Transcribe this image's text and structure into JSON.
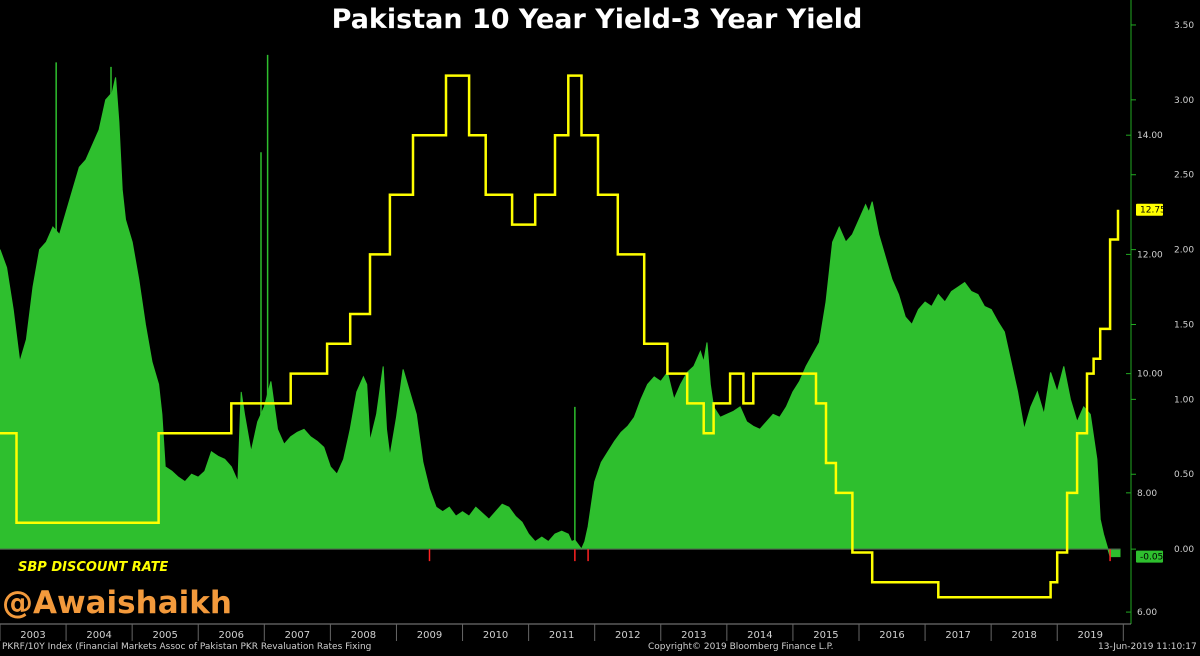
{
  "colors": {
    "background": "#000000",
    "spread_fill": "#2ebf2e",
    "discount_line": "#ffff00",
    "axis_right": "#22aa22",
    "tick_text": "#d0d0d0",
    "footer_text": "#cfcfcf",
    "watermark": "#f39a3c",
    "negative_marks": "#ff2222"
  },
  "footer": {
    "left": "PKRF/10Y Index (Financial Markets Assoc of Pakistan PKR Revaluation Rates Fixing",
    "center": "Copyright© 2019 Bloomberg Finance L.P.",
    "right": "13-Jun-2019 11:10:17"
  },
  "watermark": "@Awaishaikh",
  "chart_data": {
    "type": "area",
    "title": "Pakistan 10 Year Yield-3 Year Yield",
    "x_range": [
      2002.5,
      2019.45
    ],
    "x_ticks": [
      {
        "label": "2003",
        "x": 2003.0
      },
      {
        "label": "2004",
        "x": 2004.0
      },
      {
        "label": "2005",
        "x": 2005.0
      },
      {
        "label": "2006",
        "x": 2006.0
      },
      {
        "label": "2007",
        "x": 2007.0
      },
      {
        "label": "2008",
        "x": 2008.0
      },
      {
        "label": "2009",
        "x": 2009.0
      },
      {
        "label": "2010",
        "x": 2010.0
      },
      {
        "label": "2011",
        "x": 2011.0
      },
      {
        "label": "2012",
        "x": 2012.0
      },
      {
        "label": "2013",
        "x": 2013.0
      },
      {
        "label": "2014",
        "x": 2014.0
      },
      {
        "label": "2015",
        "x": 2015.0
      },
      {
        "label": "2016",
        "x": 2016.0
      },
      {
        "label": "2017",
        "x": 2017.0
      },
      {
        "label": "2018",
        "x": 2018.0
      },
      {
        "label": "2019",
        "x": 2019.0
      }
    ],
    "right_axis_spread": {
      "range": [
        -0.5,
        3.6
      ],
      "ticks": [
        {
          "label": "0.00",
          "value": 0.0
        },
        {
          "label": "0.50",
          "value": 0.5
        },
        {
          "label": "1.00",
          "value": 1.0
        },
        {
          "label": "1.50",
          "value": 1.5
        },
        {
          "label": "2.00",
          "value": 2.0
        },
        {
          "label": "2.50",
          "value": 2.5
        },
        {
          "label": "3.00",
          "value": 3.0
        },
        {
          "label": "3.50",
          "value": 3.5
        }
      ]
    },
    "right_axis_rate": {
      "range": [
        5.8,
        16.1
      ],
      "ticks": [
        {
          "label": "6.00",
          "value": 6.0
        },
        {
          "label": "8.00",
          "value": 8.0
        },
        {
          "label": "10.00",
          "value": 10.0
        },
        {
          "label": "12.00",
          "value": 12.0
        },
        {
          "label": "14.00",
          "value": 14.0
        }
      ]
    },
    "series": [
      {
        "name": "",
        "kind": "area",
        "axis": "spread",
        "points": [
          [
            2002.5,
            2.0
          ],
          [
            2002.6,
            1.88
          ],
          [
            2002.7,
            1.6
          ],
          [
            2002.8,
            1.25
          ],
          [
            2002.9,
            1.4
          ],
          [
            2003.0,
            1.75
          ],
          [
            2003.1,
            2.0
          ],
          [
            2003.2,
            2.05
          ],
          [
            2003.3,
            2.15
          ],
          [
            2003.4,
            2.1
          ],
          [
            2003.5,
            2.25
          ],
          [
            2003.6,
            2.4
          ],
          [
            2003.7,
            2.55
          ],
          [
            2003.8,
            2.6
          ],
          [
            2003.9,
            2.7
          ],
          [
            2004.0,
            2.8
          ],
          [
            2004.1,
            3.0
          ],
          [
            2004.2,
            3.05
          ],
          [
            2004.25,
            3.15
          ],
          [
            2004.3,
            2.85
          ],
          [
            2004.35,
            2.4
          ],
          [
            2004.4,
            2.2
          ],
          [
            2004.5,
            2.05
          ],
          [
            2004.6,
            1.8
          ],
          [
            2004.7,
            1.5
          ],
          [
            2004.8,
            1.25
          ],
          [
            2004.9,
            1.1
          ],
          [
            2004.95,
            0.9
          ],
          [
            2005.0,
            0.55
          ],
          [
            2005.1,
            0.52
          ],
          [
            2005.2,
            0.48
          ],
          [
            2005.3,
            0.45
          ],
          [
            2005.4,
            0.5
          ],
          [
            2005.5,
            0.48
          ],
          [
            2005.6,
            0.52
          ],
          [
            2005.7,
            0.65
          ],
          [
            2005.8,
            0.62
          ],
          [
            2005.9,
            0.6
          ],
          [
            2006.0,
            0.55
          ],
          [
            2006.1,
            0.45
          ],
          [
            2006.15,
            1.05
          ],
          [
            2006.2,
            0.9
          ],
          [
            2006.3,
            0.65
          ],
          [
            2006.4,
            0.85
          ],
          [
            2006.5,
            0.95
          ],
          [
            2006.6,
            1.12
          ],
          [
            2006.7,
            0.8
          ],
          [
            2006.8,
            0.7
          ],
          [
            2006.9,
            0.75
          ],
          [
            2007.0,
            0.78
          ],
          [
            2007.1,
            0.8
          ],
          [
            2007.2,
            0.75
          ],
          [
            2007.3,
            0.72
          ],
          [
            2007.4,
            0.68
          ],
          [
            2007.5,
            0.55
          ],
          [
            2007.6,
            0.5
          ],
          [
            2007.7,
            0.6
          ],
          [
            2007.8,
            0.8
          ],
          [
            2007.9,
            1.05
          ],
          [
            2008.0,
            1.15
          ],
          [
            2008.05,
            1.1
          ],
          [
            2008.1,
            0.72
          ],
          [
            2008.2,
            0.9
          ],
          [
            2008.3,
            1.22
          ],
          [
            2008.35,
            0.8
          ],
          [
            2008.4,
            0.62
          ],
          [
            2008.5,
            0.88
          ],
          [
            2008.6,
            1.2
          ],
          [
            2008.7,
            1.05
          ],
          [
            2008.8,
            0.9
          ],
          [
            2008.9,
            0.58
          ],
          [
            2009.0,
            0.4
          ],
          [
            2009.1,
            0.28
          ],
          [
            2009.2,
            0.25
          ],
          [
            2009.3,
            0.28
          ],
          [
            2009.4,
            0.22
          ],
          [
            2009.5,
            0.25
          ],
          [
            2009.6,
            0.22
          ],
          [
            2009.7,
            0.28
          ],
          [
            2009.8,
            0.24
          ],
          [
            2009.9,
            0.2
          ],
          [
            2010.0,
            0.25
          ],
          [
            2010.1,
            0.3
          ],
          [
            2010.2,
            0.28
          ],
          [
            2010.3,
            0.22
          ],
          [
            2010.4,
            0.18
          ],
          [
            2010.5,
            0.1
          ],
          [
            2010.6,
            0.05
          ],
          [
            2010.7,
            0.08
          ],
          [
            2010.8,
            0.05
          ],
          [
            2010.9,
            0.1
          ],
          [
            2011.0,
            0.12
          ],
          [
            2011.1,
            0.1
          ],
          [
            2011.15,
            0.05
          ],
          [
            2011.2,
            0.06
          ],
          [
            2011.3,
            0.0
          ],
          [
            2011.35,
            0.05
          ],
          [
            2011.4,
            0.15
          ],
          [
            2011.5,
            0.45
          ],
          [
            2011.6,
            0.58
          ],
          [
            2011.7,
            0.65
          ],
          [
            2011.8,
            0.72
          ],
          [
            2011.9,
            0.78
          ],
          [
            2012.0,
            0.82
          ],
          [
            2012.1,
            0.88
          ],
          [
            2012.2,
            1.0
          ],
          [
            2012.3,
            1.1
          ],
          [
            2012.4,
            1.15
          ],
          [
            2012.5,
            1.12
          ],
          [
            2012.6,
            1.18
          ],
          [
            2012.7,
            1.0
          ],
          [
            2012.8,
            1.1
          ],
          [
            2012.9,
            1.18
          ],
          [
            2013.0,
            1.22
          ],
          [
            2013.1,
            1.32
          ],
          [
            2013.15,
            1.25
          ],
          [
            2013.2,
            1.38
          ],
          [
            2013.25,
            1.1
          ],
          [
            2013.3,
            0.95
          ],
          [
            2013.4,
            0.88
          ],
          [
            2013.5,
            0.9
          ],
          [
            2013.6,
            0.92
          ],
          [
            2013.7,
            0.95
          ],
          [
            2013.8,
            0.85
          ],
          [
            2013.9,
            0.82
          ],
          [
            2014.0,
            0.8
          ],
          [
            2014.1,
            0.85
          ],
          [
            2014.2,
            0.9
          ],
          [
            2014.3,
            0.88
          ],
          [
            2014.4,
            0.95
          ],
          [
            2014.5,
            1.05
          ],
          [
            2014.6,
            1.12
          ],
          [
            2014.7,
            1.22
          ],
          [
            2014.8,
            1.3
          ],
          [
            2014.9,
            1.38
          ],
          [
            2015.0,
            1.65
          ],
          [
            2015.1,
            2.05
          ],
          [
            2015.2,
            2.15
          ],
          [
            2015.3,
            2.05
          ],
          [
            2015.4,
            2.1
          ],
          [
            2015.5,
            2.2
          ],
          [
            2015.6,
            2.3
          ],
          [
            2015.65,
            2.25
          ],
          [
            2015.7,
            2.32
          ],
          [
            2015.8,
            2.1
          ],
          [
            2015.9,
            1.95
          ],
          [
            2016.0,
            1.8
          ],
          [
            2016.1,
            1.7
          ],
          [
            2016.2,
            1.55
          ],
          [
            2016.3,
            1.5
          ],
          [
            2016.4,
            1.6
          ],
          [
            2016.5,
            1.65
          ],
          [
            2016.6,
            1.62
          ],
          [
            2016.7,
            1.7
          ],
          [
            2016.8,
            1.65
          ],
          [
            2016.9,
            1.72
          ],
          [
            2017.0,
            1.75
          ],
          [
            2017.1,
            1.78
          ],
          [
            2017.2,
            1.72
          ],
          [
            2017.3,
            1.7
          ],
          [
            2017.4,
            1.62
          ],
          [
            2017.5,
            1.6
          ],
          [
            2017.6,
            1.52
          ],
          [
            2017.7,
            1.45
          ],
          [
            2017.8,
            1.25
          ],
          [
            2017.9,
            1.05
          ],
          [
            2018.0,
            0.8
          ],
          [
            2018.1,
            0.95
          ],
          [
            2018.2,
            1.05
          ],
          [
            2018.3,
            0.9
          ],
          [
            2018.4,
            1.18
          ],
          [
            2018.5,
            1.05
          ],
          [
            2018.6,
            1.22
          ],
          [
            2018.7,
            1.0
          ],
          [
            2018.8,
            0.85
          ],
          [
            2018.9,
            0.95
          ],
          [
            2019.0,
            0.9
          ],
          [
            2019.1,
            0.6
          ],
          [
            2019.15,
            0.2
          ],
          [
            2019.2,
            0.1
          ],
          [
            2019.3,
            -0.05
          ],
          [
            2019.45,
            -0.05
          ]
        ],
        "spikes": [
          [
            2003.35,
            3.25
          ],
          [
            2004.18,
            3.22
          ],
          [
            2006.55,
            3.3
          ],
          [
            2006.45,
            2.65
          ],
          [
            2011.2,
            0.95
          ]
        ],
        "last_value": -0.05,
        "last_label": "-0.05"
      },
      {
        "name": "SBP DISCOUNT RATE",
        "kind": "step",
        "axis": "rate",
        "points": [
          [
            2002.5,
            9.0
          ],
          [
            2002.75,
            7.5
          ],
          [
            2004.9,
            9.0
          ],
          [
            2006.0,
            9.5
          ],
          [
            2006.9,
            10.0
          ],
          [
            2007.45,
            10.5
          ],
          [
            2007.8,
            11.0
          ],
          [
            2008.1,
            12.0
          ],
          [
            2008.4,
            13.0
          ],
          [
            2008.75,
            14.0
          ],
          [
            2009.25,
            15.0
          ],
          [
            2009.6,
            14.0
          ],
          [
            2009.85,
            13.0
          ],
          [
            2010.25,
            12.5
          ],
          [
            2010.6,
            13.0
          ],
          [
            2010.9,
            14.0
          ],
          [
            2011.1,
            15.0
          ],
          [
            2011.3,
            14.0
          ],
          [
            2011.55,
            13.0
          ],
          [
            2011.85,
            12.0
          ],
          [
            2012.25,
            10.5
          ],
          [
            2012.6,
            10.0
          ],
          [
            2012.9,
            9.5
          ],
          [
            2013.15,
            9.0
          ],
          [
            2013.3,
            9.5
          ],
          [
            2013.55,
            10.0
          ],
          [
            2013.75,
            9.5
          ],
          [
            2013.9,
            10.0
          ],
          [
            2014.0,
            10.0
          ],
          [
            2014.7,
            10.0
          ],
          [
            2014.85,
            9.5
          ],
          [
            2015.0,
            8.5
          ],
          [
            2015.15,
            8.0
          ],
          [
            2015.4,
            7.0
          ],
          [
            2015.7,
            6.5
          ],
          [
            2016.4,
            6.5
          ],
          [
            2016.7,
            6.25
          ],
          [
            2017.0,
            6.25
          ],
          [
            2018.0,
            6.25
          ],
          [
            2018.4,
            6.5
          ],
          [
            2018.5,
            7.0
          ],
          [
            2018.65,
            8.0
          ],
          [
            2018.8,
            9.0
          ],
          [
            2018.95,
            10.0
          ],
          [
            2019.05,
            10.25
          ],
          [
            2019.15,
            10.75
          ],
          [
            2019.3,
            12.25
          ],
          [
            2019.42,
            12.75
          ]
        ],
        "last_value": 12.75,
        "last_label": "12.75"
      }
    ],
    "negative_marks_x": [
      2009.0,
      2011.2,
      2011.4,
      2019.3
    ],
    "grid": false,
    "legend": "bottom-left"
  }
}
